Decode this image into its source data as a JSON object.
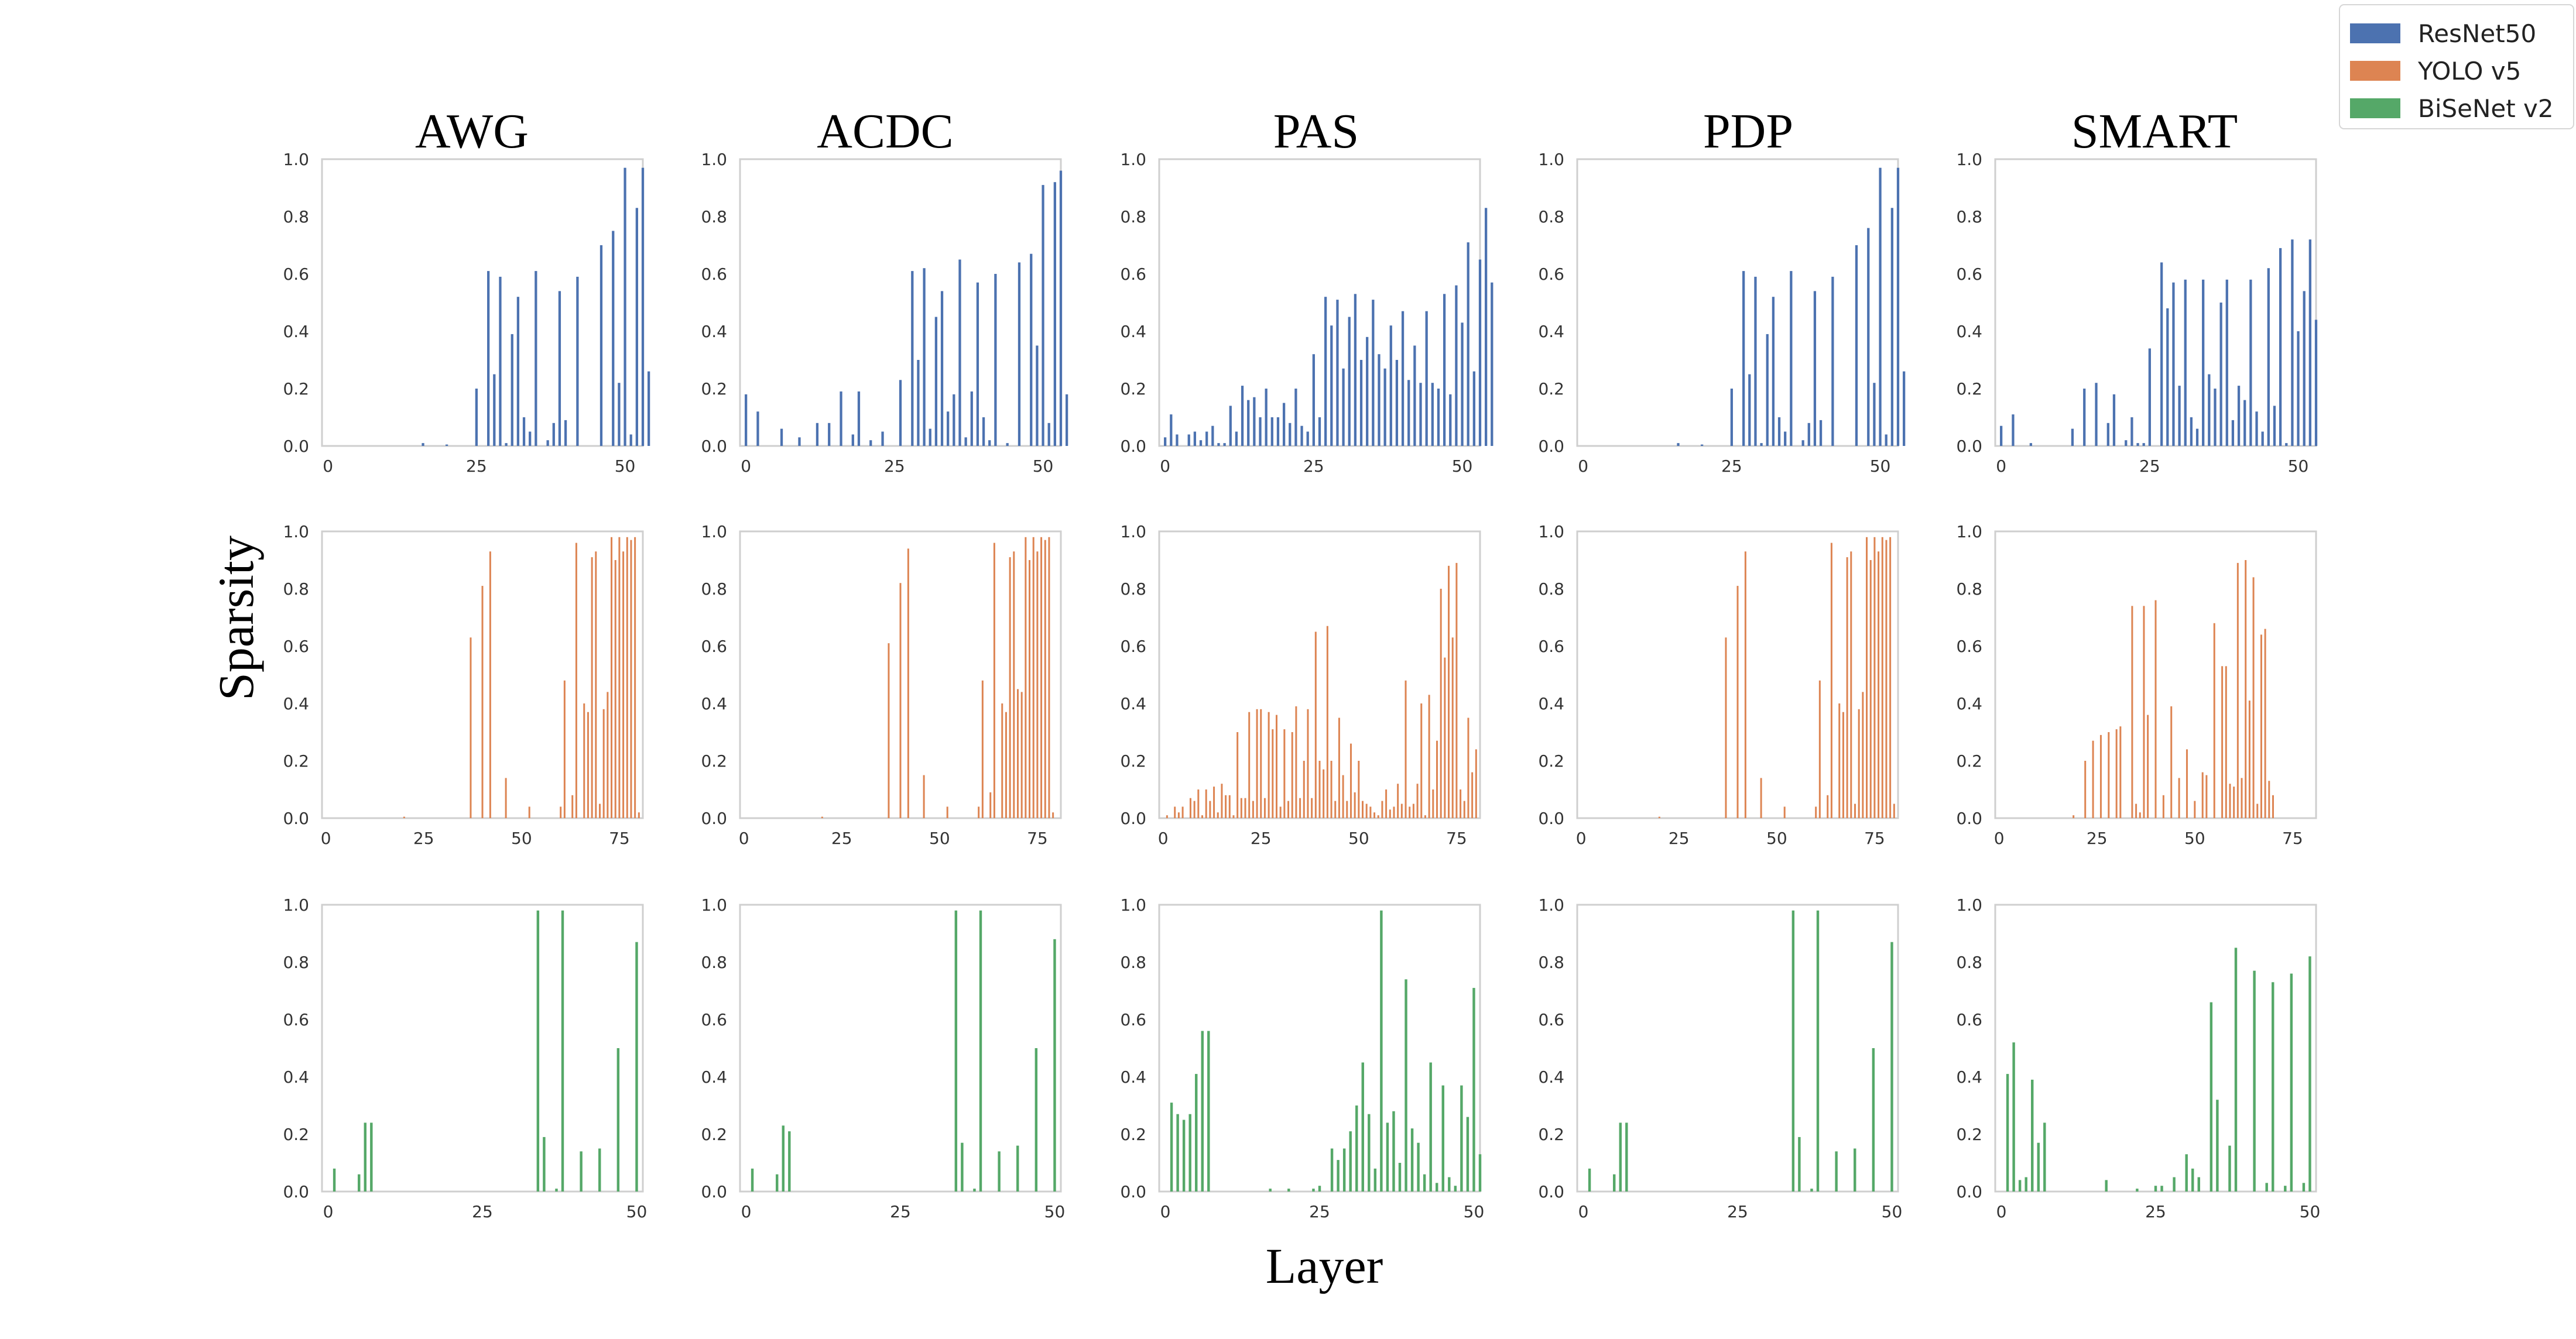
{
  "chart_data": {
    "type": "bar",
    "grid": false,
    "ylabel": "Sparsity",
    "xlabel": "Layer",
    "ylim": [
      0,
      1.0
    ],
    "yticks": [
      0.0,
      0.2,
      0.4,
      0.6,
      0.8,
      1.0
    ],
    "methods": [
      "AWG",
      "ACDC",
      "PAS",
      "PDP",
      "SMART"
    ],
    "legend": {
      "position": "top-right",
      "entries": [
        {
          "label": "ResNet50",
          "color": "#4c72b0"
        },
        {
          "label": "YOLO v5",
          "color": "#dd8452"
        },
        {
          "label": "BiSeNet v2",
          "color": "#55a868"
        }
      ]
    },
    "rows": [
      {
        "model": "ResNet50",
        "color": "#4c72b0",
        "xlim": [
          -1,
          53
        ],
        "xticks": [
          0,
          25,
          50
        ],
        "panels": [
          {
            "method": "AWG",
            "values": [
              0,
              0,
              0,
              0,
              0,
              0,
              0,
              0,
              0,
              0,
              0,
              0,
              0,
              0,
              0,
              0,
              0.01,
              0,
              0,
              0,
              0.005,
              0,
              0,
              0,
              0,
              0.2,
              0,
              0.61,
              0.25,
              0.59,
              0.01,
              0.39,
              0.52,
              0.1,
              0.05,
              0.61,
              0,
              0.02,
              0.08,
              0.54,
              0.09,
              0,
              0.59,
              0,
              0,
              0,
              0.7,
              0,
              0.75,
              0.22,
              0.97,
              0.04,
              0.83,
              0.97,
              0.26
            ]
          },
          {
            "method": "ACDC",
            "values": [
              0.18,
              0,
              0.12,
              0,
              0,
              0,
              0.06,
              0,
              0,
              0.03,
              0,
              0,
              0.08,
              0,
              0.08,
              0,
              0.19,
              0,
              0.04,
              0.19,
              0,
              0.02,
              0,
              0.05,
              0,
              0,
              0.23,
              0,
              0.61,
              0.3,
              0.62,
              0.06,
              0.45,
              0.54,
              0.12,
              0.18,
              0.65,
              0.03,
              0.19,
              0.57,
              0.1,
              0.02,
              0.6,
              0,
              0.01,
              0,
              0.64,
              0,
              0.67,
              0.35,
              0.91,
              0.08,
              0.92,
              0.96,
              0.18
            ]
          },
          {
            "method": "PAS",
            "values": [
              0.03,
              0.11,
              0.04,
              0,
              0.04,
              0.05,
              0.02,
              0.05,
              0.07,
              0.01,
              0.01,
              0.14,
              0.05,
              0.21,
              0.16,
              0.17,
              0.1,
              0.2,
              0.1,
              0.1,
              0.15,
              0.08,
              0.2,
              0.07,
              0.05,
              0.32,
              0.1,
              0.52,
              0.42,
              0.51,
              0.27,
              0.45,
              0.53,
              0.3,
              0.38,
              0.51,
              0.32,
              0.27,
              0.42,
              0.3,
              0.47,
              0.23,
              0.35,
              0.22,
              0.47,
              0.22,
              0.2,
              0.53,
              0.18,
              0.56,
              0.43,
              0.71,
              0.26,
              0.65,
              0.83,
              0.57
            ]
          },
          {
            "method": "PDP",
            "values": [
              0,
              0,
              0,
              0,
              0,
              0,
              0,
              0,
              0,
              0,
              0,
              0,
              0,
              0,
              0,
              0,
              0.01,
              0,
              0,
              0,
              0.005,
              0,
              0,
              0,
              0,
              0.2,
              0,
              0.61,
              0.25,
              0.59,
              0.01,
              0.39,
              0.52,
              0.1,
              0.05,
              0.61,
              0,
              0.02,
              0.08,
              0.54,
              0.09,
              0,
              0.59,
              0,
              0,
              0,
              0.7,
              0,
              0.76,
              0.22,
              0.97,
              0.04,
              0.83,
              0.97,
              0.26
            ]
          },
          {
            "method": "SMART",
            "values": [
              0.07,
              0,
              0.11,
              0,
              0,
              0.01,
              0,
              0,
              0,
              0,
              0,
              0,
              0.06,
              0,
              0.2,
              0,
              0.22,
              0,
              0.08,
              0.18,
              0,
              0.02,
              0.1,
              0.01,
              0.01,
              0.34,
              0,
              0.64,
              0.48,
              0.57,
              0.21,
              0.58,
              0.1,
              0.06,
              0.58,
              0.25,
              0.2,
              0.5,
              0.58,
              0.09,
              0.21,
              0.16,
              0.58,
              0.12,
              0.05,
              0.62,
              0.14,
              0.69,
              0.01,
              0.72,
              0.4,
              0.54,
              0.72,
              0.44
            ]
          }
        ]
      },
      {
        "model": "YOLO v5",
        "color": "#dd8452",
        "xlim": [
          -1,
          81
        ],
        "xticks": [
          0,
          25,
          50,
          75
        ],
        "panels": [
          {
            "method": "AWG",
            "values": [
              0,
              0,
              0,
              0,
              0,
              0,
              0,
              0,
              0,
              0,
              0,
              0,
              0,
              0,
              0,
              0,
              0,
              0,
              0,
              0,
              0.005,
              0,
              0,
              0,
              0,
              0,
              0,
              0,
              0,
              0,
              0,
              0,
              0,
              0,
              0,
              0,
              0,
              0.63,
              0,
              0,
              0.81,
              0,
              0.93,
              0,
              0,
              0,
              0.14,
              0,
              0,
              0,
              0,
              0,
              0.04,
              0,
              0,
              0,
              0,
              0,
              0,
              0,
              0.04,
              0.48,
              0,
              0.08,
              0.96,
              0,
              0.4,
              0.37,
              0.91,
              0.93,
              0.05,
              0.38,
              0.44,
              0.98,
              0.9,
              0.98,
              0.93,
              0.98,
              0.97,
              0.98,
              0.02
            ]
          },
          {
            "method": "ACDC",
            "values": [
              0,
              0,
              0,
              0,
              0,
              0,
              0,
              0,
              0,
              0,
              0,
              0,
              0,
              0,
              0,
              0,
              0,
              0,
              0,
              0,
              0.005,
              0,
              0,
              0,
              0,
              0,
              0,
              0,
              0,
              0,
              0,
              0,
              0,
              0,
              0,
              0,
              0,
              0.61,
              0,
              0,
              0.82,
              0,
              0.94,
              0,
              0,
              0,
              0.15,
              0,
              0,
              0,
              0,
              0,
              0.04,
              0,
              0,
              0,
              0,
              0,
              0,
              0,
              0.04,
              0.48,
              0,
              0.09,
              0.96,
              0,
              0.4,
              0.37,
              0.91,
              0.93,
              0.45,
              0.44,
              0.98,
              0.9,
              0.98,
              0.93,
              0.98,
              0.97,
              0.98,
              0.02
            ]
          },
          {
            "method": "PAS",
            "values": [
              0,
              0.01,
              0,
              0.04,
              0.02,
              0.04,
              0,
              0.07,
              0.06,
              0.1,
              0.01,
              0.1,
              0.06,
              0.11,
              0.02,
              0.12,
              0.08,
              0.08,
              0.01,
              0.3,
              0.07,
              0.07,
              0.37,
              0.06,
              0.38,
              0.38,
              0.07,
              0.37,
              0.31,
              0.36,
              0.04,
              0.31,
              0.06,
              0.3,
              0.39,
              0.07,
              0.2,
              0.38,
              0.07,
              0.65,
              0.2,
              0.17,
              0.67,
              0.2,
              0.06,
              0.35,
              0.15,
              0.06,
              0.26,
              0.09,
              0.2,
              0.06,
              0.05,
              0.04,
              0.02,
              0.01,
              0.06,
              0.1,
              0.03,
              0.04,
              0.12,
              0.05,
              0.48,
              0.04,
              0.05,
              0.12,
              0.4,
              0.01,
              0.43,
              0.1,
              0.27,
              0.8,
              0.56,
              0.88,
              0.63,
              0.89,
              0.1,
              0.06,
              0.35,
              0.16,
              0.24
            ]
          },
          {
            "method": "PDP",
            "values": [
              0,
              0,
              0,
              0,
              0,
              0,
              0,
              0,
              0,
              0,
              0,
              0,
              0,
              0,
              0,
              0,
              0,
              0,
              0,
              0,
              0.005,
              0,
              0,
              0,
              0,
              0,
              0,
              0,
              0,
              0,
              0,
              0,
              0,
              0,
              0,
              0,
              0,
              0.63,
              0,
              0,
              0.81,
              0,
              0.93,
              0,
              0,
              0,
              0.14,
              0,
              0,
              0,
              0,
              0,
              0.04,
              0,
              0,
              0,
              0,
              0,
              0,
              0,
              0.04,
              0.48,
              0,
              0.08,
              0.96,
              0,
              0.4,
              0.37,
              0.91,
              0.93,
              0.05,
              0.38,
              0.44,
              0.98,
              0.9,
              0.98,
              0.93,
              0.98,
              0.97,
              0.98,
              0.05
            ]
          },
          {
            "method": "SMART",
            "values": [
              0,
              0,
              0,
              0,
              0,
              0,
              0,
              0,
              0,
              0,
              0,
              0,
              0,
              0,
              0,
              0,
              0,
              0,
              0,
              0.01,
              0,
              0,
              0.2,
              0,
              0.27,
              0,
              0.29,
              0,
              0.3,
              0,
              0.31,
              0.32,
              0,
              0,
              0.74,
              0.05,
              0.02,
              0.74,
              0.36,
              0,
              0.76,
              0,
              0.08,
              0,
              0.39,
              0,
              0.14,
              0,
              0.24,
              0,
              0.06,
              0,
              0.16,
              0.15,
              0,
              0.68,
              0,
              0.53,
              0.53,
              0.12,
              0.11,
              0.89,
              0.14,
              0.9,
              0.41,
              0.84,
              0.05,
              0.64,
              0.66,
              0.13,
              0.08
            ]
          }
        ]
      },
      {
        "model": "BiSeNet v2",
        "color": "#55a868",
        "xlim": [
          -1,
          51
        ],
        "xticks": [
          0,
          25,
          50
        ],
        "panels": [
          {
            "method": "AWG",
            "values": [
              0,
              0.08,
              0,
              0,
              0,
              0.06,
              0.24,
              0.24,
              0,
              0,
              0,
              0,
              0,
              0,
              0,
              0,
              0,
              0,
              0,
              0,
              0,
              0,
              0,
              0,
              0,
              0,
              0,
              0,
              0,
              0,
              0,
              0,
              0,
              0,
              0.98,
              0.19,
              0,
              0.01,
              0.98,
              0,
              0,
              0.14,
              0,
              0,
              0.15,
              0,
              0,
              0.5,
              0,
              0,
              0.87
            ]
          },
          {
            "method": "ACDC",
            "values": [
              0,
              0.08,
              0,
              0,
              0,
              0.06,
              0.23,
              0.21,
              0,
              0,
              0,
              0,
              0,
              0,
              0,
              0,
              0,
              0,
              0,
              0,
              0,
              0,
              0,
              0,
              0,
              0,
              0,
              0,
              0,
              0,
              0,
              0,
              0,
              0,
              0.98,
              0.17,
              0,
              0.01,
              0.98,
              0,
              0,
              0.14,
              0,
              0,
              0.16,
              0,
              0,
              0.5,
              0,
              0,
              0.88
            ]
          },
          {
            "method": "PAS",
            "values": [
              0,
              0.31,
              0.27,
              0.25,
              0.27,
              0.41,
              0.56,
              0.56,
              0,
              0,
              0,
              0,
              0,
              0,
              0,
              0,
              0,
              0.01,
              0,
              0,
              0.01,
              0,
              0,
              0,
              0.01,
              0.02,
              0,
              0.15,
              0.11,
              0.15,
              0.21,
              0.3,
              0.45,
              0.27,
              0.08,
              0.98,
              0.24,
              0.28,
              0.1,
              0.74,
              0.22,
              0.17,
              0.06,
              0.45,
              0.03,
              0.37,
              0.05,
              0.02,
              0.37,
              0.26,
              0.71,
              0.13
            ]
          },
          {
            "method": "PDP",
            "values": [
              0,
              0.08,
              0,
              0,
              0,
              0.06,
              0.24,
              0.24,
              0,
              0,
              0,
              0,
              0,
              0,
              0,
              0,
              0,
              0,
              0,
              0,
              0,
              0,
              0,
              0,
              0,
              0,
              0,
              0,
              0,
              0,
              0,
              0,
              0,
              0,
              0.98,
              0.19,
              0,
              0.01,
              0.98,
              0,
              0,
              0.14,
              0,
              0,
              0.15,
              0,
              0,
              0.5,
              0,
              0,
              0.87
            ]
          },
          {
            "method": "SMART",
            "values": [
              0,
              0.41,
              0.52,
              0.04,
              0.05,
              0.39,
              0.17,
              0.24,
              0,
              0,
              0,
              0,
              0,
              0,
              0,
              0,
              0,
              0.04,
              0,
              0,
              0,
              0,
              0.01,
              0,
              0,
              0.02,
              0.02,
              0,
              0.05,
              0,
              0.13,
              0.08,
              0.05,
              0,
              0.66,
              0.32,
              0,
              0.16,
              0.85,
              0,
              0,
              0.77,
              0,
              0.03,
              0.73,
              0,
              0.02,
              0.76,
              0,
              0.03,
              0.82
            ]
          }
        ]
      }
    ]
  }
}
